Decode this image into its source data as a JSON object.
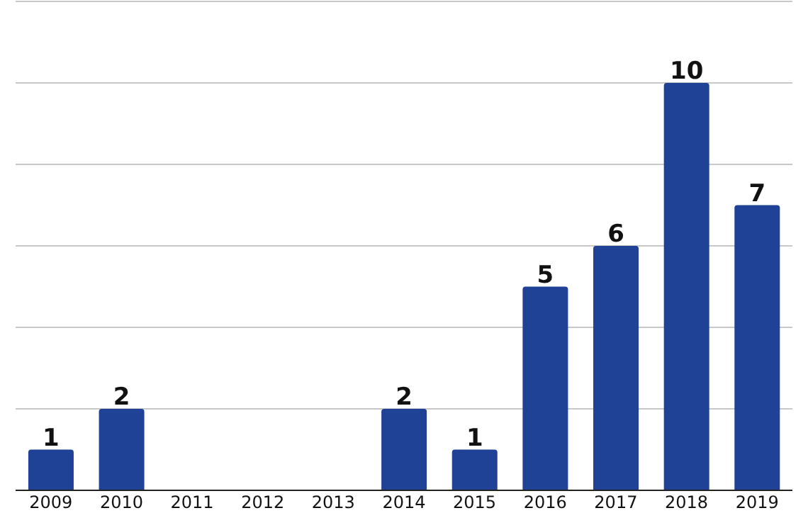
{
  "chart_data": {
    "type": "bar",
    "categories": [
      "2009",
      "2010",
      "2011",
      "2012",
      "2013",
      "2014",
      "2015",
      "2016",
      "2017",
      "2018",
      "2019"
    ],
    "values": [
      1,
      2,
      0,
      0,
      0,
      2,
      1,
      5,
      6,
      10,
      7
    ],
    "value_labels": [
      "1",
      "2",
      null,
      null,
      null,
      "2",
      "1",
      "5",
      "6",
      "10",
      "7"
    ],
    "color": "#1f4196",
    "ylim": [
      0,
      12
    ],
    "yticks": [
      {
        "value": 0,
        "label": null
      },
      {
        "value": 2,
        "label": null
      },
      {
        "value": 4,
        "label": null
      },
      {
        "value": 6,
        "label": null
      },
      {
        "value": 8,
        "label": null
      },
      {
        "value": 10,
        "label": null
      },
      {
        "value": 12,
        "label": null
      }
    ],
    "tick_labels": "x",
    "grid": "y",
    "legend": false
  }
}
